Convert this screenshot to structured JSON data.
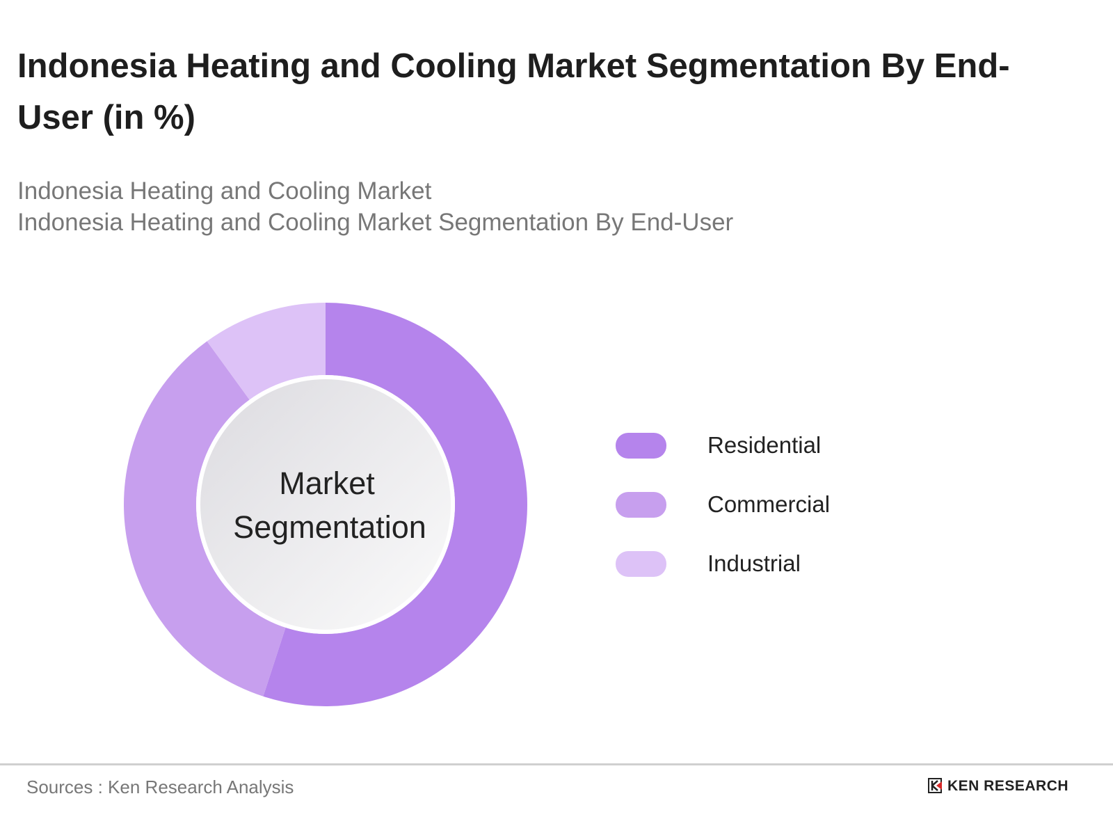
{
  "header": {
    "title": "Indonesia Heating and Cooling Market Segmentation By End-User (in %)",
    "subtitle_1": "Indonesia Heating and Cooling Market",
    "subtitle_2": "Indonesia Heating and Cooling Market Segmentation By End-User"
  },
  "chart_data": {
    "type": "pie",
    "variant": "donut",
    "center_label_1": "Market",
    "center_label_2": "Segmentation",
    "categories": [
      "Residential",
      "Commercial",
      "Industrial"
    ],
    "values": [
      55,
      35,
      10
    ],
    "colors": [
      "#b584ec",
      "#c79fee",
      "#ddc2f7"
    ],
    "legend_position": "right"
  },
  "footer": {
    "source": "Sources : Ken Research Analysis",
    "logo_text": "KEN RESEARCH"
  }
}
